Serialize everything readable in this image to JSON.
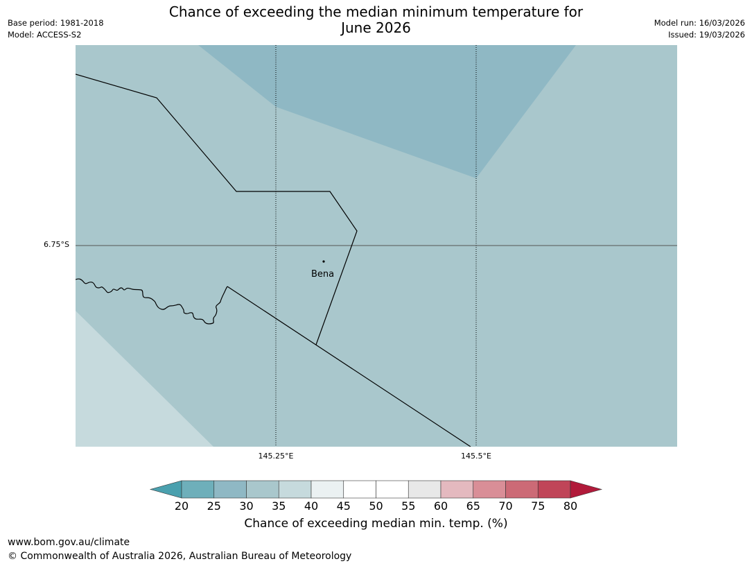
{
  "header": {
    "title_line1": "Chance of exceeding the median minimum temperature for",
    "title_line2": "June 2026",
    "base_period": "Base period: 1981-2018",
    "model": "Model: ACCESS-S2",
    "model_run": "Model run: 16/03/2026",
    "issued": "Issued: 19/03/2026"
  },
  "map": {
    "latitude_label": "6.75°S",
    "longitude_labels": [
      "145.25°E",
      "145.5°E"
    ],
    "town": {
      "name": "Bena"
    },
    "region_bins": [
      "25-30",
      "30-35",
      "35-40"
    ]
  },
  "colorbar": {
    "title": "Chance of exceeding median min. temp. (%)",
    "ticks": [
      "20",
      "25",
      "30",
      "35",
      "40",
      "45",
      "50",
      "55",
      "60",
      "65",
      "70",
      "75",
      "80"
    ],
    "under_color": "#4aa0ae",
    "over_color": "#b11a3a",
    "bin_colors": [
      "#6eafba",
      "#8fb8c4",
      "#a9c7cc",
      "#c6dadd",
      "#ebf1f2",
      "#ffffff",
      "#ffffff",
      "#e8e8e8",
      "#e4b9bf",
      "#d98e97",
      "#cc6a76",
      "#c04558"
    ]
  },
  "footer": {
    "url": "www.bom.gov.au/climate",
    "copyright": "© Commonwealth of Australia 2026, Australian Bureau of Meteorology"
  }
}
